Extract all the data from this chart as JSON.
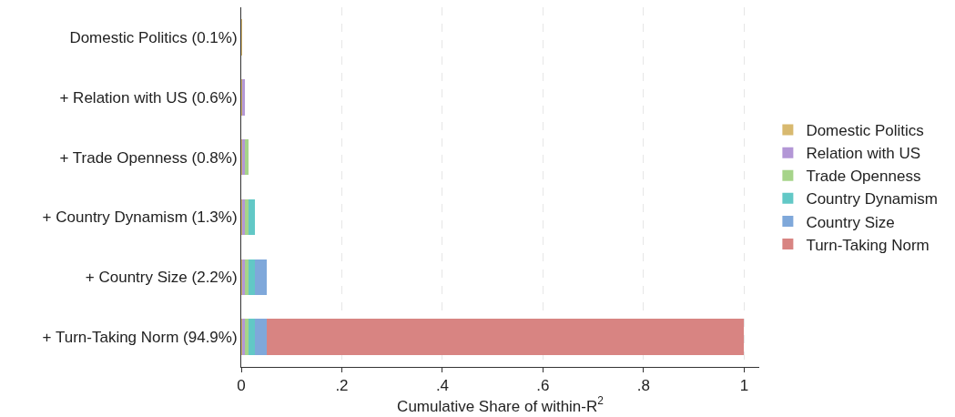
{
  "chart_data": {
    "type": "bar",
    "orientation": "horizontal",
    "stacked": true,
    "xlabel": "Cumulative Share of within-R$^{2}$",
    "categories": [
      "Domestic Politics (0.1%)",
      "+ Relation with US (0.6%)",
      "+ Trade Openness (0.8%)",
      "+ Country Dynamism (1.3%)",
      "+ Country Size (2.2%)",
      "+ Turn-Taking Norm (94.9%)"
    ],
    "series": [
      {
        "name": "Domestic Politics",
        "color": "#d8b96f",
        "values": [
          0.001,
          0.001,
          0.001,
          0.001,
          0.001,
          0.001
        ]
      },
      {
        "name": "Relation with US",
        "color": "#b397d6",
        "values": [
          null,
          0.006,
          0.006,
          0.006,
          0.006,
          0.006
        ]
      },
      {
        "name": "Trade Openness",
        "color": "#a6d48a",
        "values": [
          null,
          null,
          0.008,
          0.008,
          0.008,
          0.008
        ]
      },
      {
        "name": "Country Dynamism",
        "color": "#62c8c6",
        "values": [
          null,
          null,
          null,
          0.013,
          0.013,
          0.013
        ]
      },
      {
        "name": "Country Size",
        "color": "#7fa8da",
        "values": [
          null,
          null,
          null,
          null,
          0.022,
          0.022
        ]
      },
      {
        "name": "Turn-Taking Norm",
        "color": "#d88482",
        "values": [
          null,
          null,
          null,
          null,
          null,
          0.949
        ]
      }
    ],
    "xlim": [
      0,
      1.03
    ],
    "xticks": [
      0,
      {
        "value": 0.2,
        "label": ".2"
      },
      {
        "value": 0.4,
        "label": ".4"
      },
      {
        "value": 0.6,
        "label": ".6"
      },
      {
        "value": 0.8,
        "label": ".8"
      },
      1
    ],
    "grid": "x",
    "legend": "right"
  }
}
